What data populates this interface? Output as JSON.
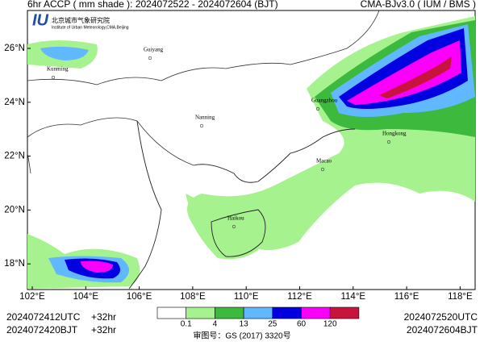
{
  "header": {
    "title": "6hr ACCP ( mm shade ): 2024072522 - 2024072604 (BJT)",
    "model": "CMA-BJv3.0 ( IUM / BMS )"
  },
  "logo": {
    "name": "北京城市气象研究院",
    "subtitle": "Institute of Urban Meteorology,CMA,Beijing"
  },
  "map": {
    "lon_labels": [
      "102°E",
      "104°E",
      "106°E",
      "108°E",
      "110°E",
      "112°E",
      "114°E",
      "116°E",
      "118°E"
    ],
    "lat_labels": [
      "26°N",
      "24°N",
      "22°N",
      "20°N",
      "18°N"
    ],
    "cities": [
      "Guiyang",
      "Kunming",
      "Nanning",
      "Guangzhou",
      "Hongkong",
      "Macao",
      "Haikou"
    ]
  },
  "colorbar": {
    "labels": [
      "0.1",
      "4",
      "13",
      "25",
      "60",
      "120"
    ],
    "colors": [
      "#ffffff",
      "#a6f28f",
      "#3dba3d",
      "#61b8ff",
      "#0000e1",
      "#fa00fa",
      "#c8143c"
    ]
  },
  "footer": {
    "init_utc": "2024072412UTC",
    "lead_1": "+32hr",
    "init_bjt": "2024072420BJT",
    "lead_2": "+32hr",
    "valid_utc": "2024072520UTC",
    "valid_bjt": "2024072604BJT",
    "approval": "审图号：GS (2017) 3320号"
  }
}
